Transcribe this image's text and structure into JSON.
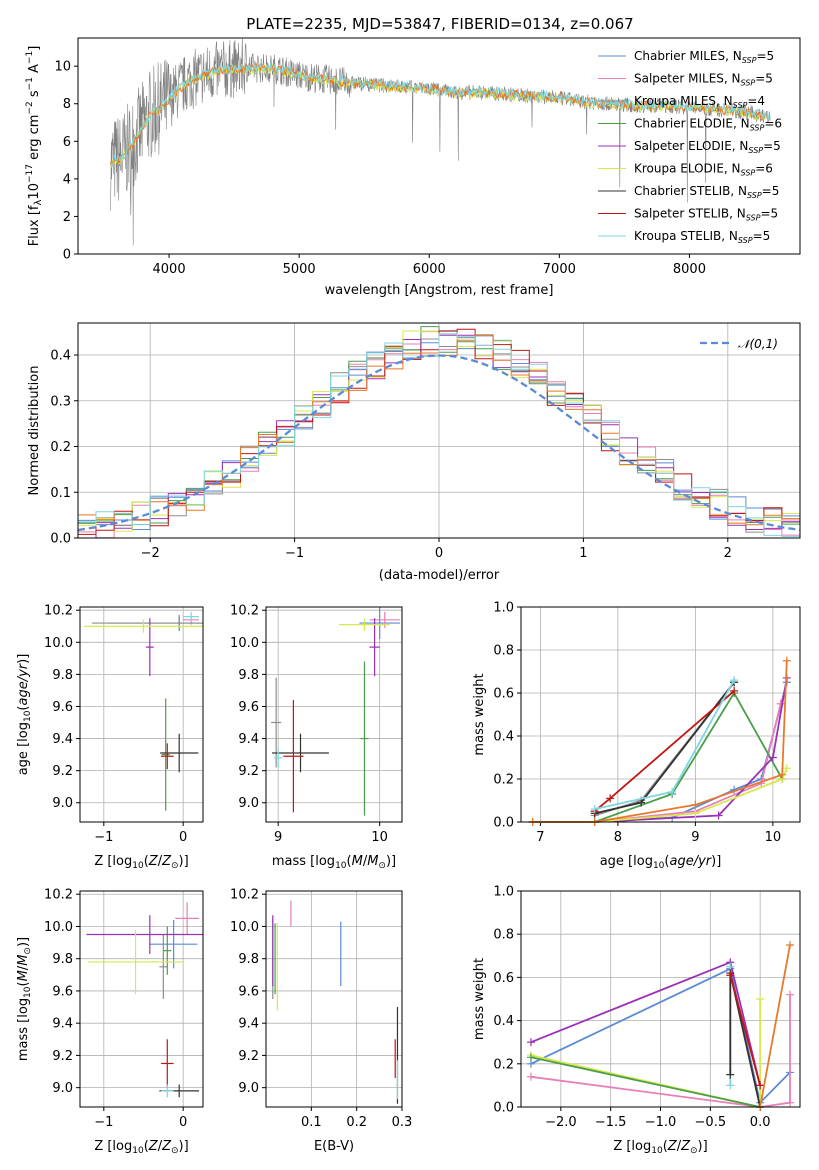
{
  "figure": {
    "title": "PLATE=2235, MJD=53847, FIBERID=0134, z=0.067"
  },
  "colors": {
    "Chabrier MILES": "#5b8bd6",
    "Salpeter MILES": "#e87fb7",
    "Kroupa MILES": "#8e8e8e",
    "Chabrier ELODIE": "#4a9e4a",
    "Salpeter ELODIE": "#9b30b8",
    "Kroupa ELODIE": "#d6e84c",
    "Chabrier STELIB": "#333333",
    "Salpeter STELIB": "#c41414",
    "Kroupa STELIB": "#7fd6e0",
    "observed": "#808080",
    "model_orange": "#e8782a",
    "normal": "#5b8bd6"
  },
  "chart_data": [
    {
      "id": "spectrum",
      "type": "line",
      "title": "PLATE=2235, MJD=53847, FIBERID=0134, z=0.067",
      "xlabel": "wavelength [Angstrom, rest frame]",
      "ylabel": "Flux [f_λ10^{-17} erg cm^{-2} s^{-1} A^{-1}]",
      "xlim": [
        3300,
        8850
      ],
      "ylim": [
        0,
        11.5
      ],
      "xticks": [
        4000,
        5000,
        6000,
        7000,
        8000
      ],
      "yticks": [
        0,
        2,
        4,
        6,
        8,
        10
      ],
      "grid": false,
      "legend": "right",
      "legend_entries": [
        {
          "name": "Chabrier MILES",
          "nssp": "5"
        },
        {
          "name": "Salpeter MILES",
          "nssp": "5"
        },
        {
          "name": "Kroupa MILES",
          "nssp": "4"
        },
        {
          "name": "Chabrier ELODIE",
          "nssp": "6"
        },
        {
          "name": "Salpeter ELODIE",
          "nssp": "5"
        },
        {
          "name": "Kroupa ELODIE",
          "nssp": "6"
        },
        {
          "name": "Chabrier STELIB",
          "nssp": "5"
        },
        {
          "name": "Salpeter STELIB",
          "nssp": "5"
        },
        {
          "name": "Kroupa STELIB",
          "nssp": "5"
        }
      ],
      "continuum": {
        "x": [
          3550,
          3650,
          3750,
          3850,
          3950,
          4050,
          4150,
          4250,
          4400,
          4600,
          4800,
          5000,
          5200,
          5400,
          5600,
          5800,
          6000,
          6200,
          6400,
          6600,
          6800,
          7000,
          7200,
          7400,
          7600,
          7800,
          8000,
          8200,
          8400,
          8600
        ],
        "y": [
          4.8,
          5.2,
          6.2,
          7.4,
          7.9,
          8.6,
          9.2,
          9.5,
          9.8,
          9.9,
          9.9,
          9.5,
          9.3,
          9.1,
          9.0,
          8.9,
          8.8,
          8.6,
          8.6,
          8.5,
          8.4,
          8.3,
          8.1,
          8.0,
          7.9,
          7.9,
          7.8,
          7.7,
          7.6,
          7.3
        ]
      }
    },
    {
      "id": "residuals",
      "type": "line",
      "xlabel": "(data-model)/error",
      "ylabel": "Normed distribution",
      "xlim": [
        -2.5,
        2.5
      ],
      "ylim": [
        0,
        0.47
      ],
      "xticks": [
        -2,
        -1,
        0,
        1,
        2
      ],
      "yticks": [
        0.0,
        0.1,
        0.2,
        0.3,
        0.4
      ],
      "grid": true,
      "legend": "top-right",
      "legend_entries": [
        {
          "name": "𝒩(0,1)"
        }
      ],
      "normal": {
        "mu": 0,
        "sigma": 1
      }
    },
    {
      "id": "age_vs_Z",
      "type": "scatter",
      "xlabel": "Z [log10(Z/Z⊙)]",
      "ylabel": "age [log10(age/yr)]",
      "xlim": [
        -1.3,
        0.25
      ],
      "ylim": [
        8.88,
        10.22
      ],
      "xticks": [
        -1,
        0
      ],
      "yticks": [
        9.0,
        9.2,
        9.4,
        9.6,
        9.8,
        10.0,
        10.2
      ],
      "grid": true,
      "points": [
        {
          "series": "Chabrier MILES",
          "x": -0.05,
          "y": 10.12,
          "xerr": 0.9,
          "yerr": 0.05
        },
        {
          "series": "Salpeter MILES",
          "x": 0.1,
          "y": 10.14,
          "xerr": 0.1,
          "yerr": 0.03
        },
        {
          "series": "Kroupa MILES",
          "x": -0.05,
          "y": 10.12,
          "xerr": 1.1,
          "yerr": 0.04
        },
        {
          "series": "Chabrier ELODIE",
          "x": -0.22,
          "y": 9.3,
          "xerr": 0.05,
          "yerr": 0.35
        },
        {
          "series": "Salpeter ELODIE",
          "x": -0.42,
          "y": 9.97,
          "xerr": 0.05,
          "yerr": 0.18
        },
        {
          "series": "Kroupa ELODIE",
          "x": -0.5,
          "y": 10.1,
          "xerr": 0.75,
          "yerr": 0.04
        },
        {
          "series": "Chabrier STELIB",
          "x": -0.05,
          "y": 9.31,
          "xerr": 0.24,
          "yerr": 0.12
        },
        {
          "series": "Salpeter STELIB",
          "x": -0.2,
          "y": 9.29,
          "xerr": 0.08,
          "yerr": 0.08
        },
        {
          "series": "Kroupa STELIB",
          "x": 0.1,
          "y": 10.16,
          "xerr": 0.1,
          "yerr": 0.03
        }
      ]
    },
    {
      "id": "age_vs_mass",
      "type": "scatter",
      "xlabel": "mass [log10(M/M⊙)]",
      "ylabel": "",
      "xlim": [
        8.88,
        10.22
      ],
      "ylim": [
        8.88,
        10.22
      ],
      "xticks": [
        9,
        10
      ],
      "yticks": [
        9.0,
        9.2,
        9.4,
        9.6,
        9.8,
        10.0,
        10.2
      ],
      "grid": true,
      "points": [
        {
          "series": "Chabrier MILES",
          "x": 10.0,
          "y": 10.12,
          "xerr": 0.2,
          "yerr": 0.1
        },
        {
          "series": "Salpeter MILES",
          "x": 10.05,
          "y": 10.14,
          "xerr": 0.15,
          "yerr": 0.05
        },
        {
          "series": "Kroupa MILES",
          "x": 8.98,
          "y": 9.5,
          "xerr": 0.05,
          "yerr": 0.28
        },
        {
          "series": "Chabrier ELODIE",
          "x": 9.85,
          "y": 9.4,
          "xerr": 0.04,
          "yerr": 0.48
        },
        {
          "series": "Salpeter ELODIE",
          "x": 9.95,
          "y": 9.97,
          "xerr": 0.05,
          "yerr": 0.18
        },
        {
          "series": "Kroupa ELODIE",
          "x": 9.85,
          "y": 10.11,
          "xerr": 0.25,
          "yerr": 0.04
        },
        {
          "series": "Chabrier STELIB",
          "x": 9.22,
          "y": 9.31,
          "xerr": 0.28,
          "yerr": 0.12
        },
        {
          "series": "Salpeter STELIB",
          "x": 9.15,
          "y": 9.29,
          "xerr": 0.1,
          "yerr": 0.35
        },
        {
          "series": "Kroupa STELIB",
          "x": 9.0,
          "y": 9.28,
          "xerr": 0.04,
          "yerr": 0.06
        }
      ]
    },
    {
      "id": "mw_vs_age",
      "type": "line",
      "xlabel": "age [log10(age/yr)]",
      "ylabel": "mass weight",
      "xlim": [
        6.75,
        10.35
      ],
      "ylim": [
        0,
        1.0
      ],
      "xticks": [
        7,
        8,
        9,
        10
      ],
      "yticks": [
        0.0,
        0.2,
        0.4,
        0.6,
        0.8,
        1.0
      ],
      "grid": true,
      "series": [
        {
          "name": "Chabrier MILES",
          "x": [
            6.9,
            7.7,
            8.7,
            9.5,
            9.85,
            10.18
          ],
          "y": [
            0.0,
            0.0,
            0.02,
            0.15,
            0.2,
            0.65
          ]
        },
        {
          "name": "Salpeter MILES",
          "x": [
            6.9,
            7.7,
            9.0,
            9.85,
            10.1
          ],
          "y": [
            0.0,
            0.0,
            0.05,
            0.18,
            0.55
          ]
        },
        {
          "name": "Kroupa MILES",
          "x": [
            7.7,
            8.3,
            9.5
          ],
          "y": [
            0.03,
            0.1,
            0.65
          ]
        },
        {
          "name": "Chabrier ELODIE",
          "x": [
            7.7,
            8.7,
            9.5,
            10.12
          ],
          "y": [
            0.0,
            0.13,
            0.6,
            0.2
          ]
        },
        {
          "name": "Salpeter ELODIE",
          "x": [
            6.9,
            7.7,
            9.3,
            10.0,
            10.18
          ],
          "y": [
            0.0,
            0.0,
            0.03,
            0.3,
            0.67
          ]
        },
        {
          "name": "Kroupa ELODIE",
          "x": [
            6.9,
            7.7,
            9.0,
            10.12,
            10.18
          ],
          "y": [
            0.0,
            0.0,
            0.04,
            0.2,
            0.25
          ]
        },
        {
          "name": "Chabrier STELIB",
          "x": [
            7.7,
            8.3,
            9.5
          ],
          "y": [
            0.04,
            0.09,
            0.65
          ]
        },
        {
          "name": "Salpeter STELIB",
          "x": [
            7.7,
            7.9,
            9.5
          ],
          "y": [
            0.05,
            0.11,
            0.61
          ]
        },
        {
          "name": "Kroupa STELIB",
          "x": [
            7.7,
            8.7,
            9.5
          ],
          "y": [
            0.06,
            0.14,
            0.66
          ]
        },
        {
          "name": "orange",
          "x": [
            6.9,
            7.7,
            9.0,
            10.12,
            10.18
          ],
          "y": [
            0.0,
            0.0,
            0.08,
            0.22,
            0.75
          ]
        }
      ]
    },
    {
      "id": "mass_vs_Z",
      "type": "scatter",
      "xlabel": "Z [log10(Z/Z⊙)]",
      "ylabel": "mass [log10(M/M⊙)]",
      "xlim": [
        -1.3,
        0.25
      ],
      "ylim": [
        8.88,
        10.22
      ],
      "xticks": [
        -1,
        0
      ],
      "yticks": [
        9.0,
        9.2,
        9.4,
        9.6,
        9.8,
        10.0,
        10.2
      ],
      "grid": true,
      "points": [
        {
          "series": "Chabrier MILES",
          "x": -0.12,
          "y": 9.89,
          "xerr": 0.3,
          "yerr": 0.15
        },
        {
          "series": "Salpeter MILES",
          "x": 0.05,
          "y": 10.05,
          "xerr": 0.15,
          "yerr": 0.1
        },
        {
          "series": "Kroupa MILES",
          "x": -0.25,
          "y": 9.75,
          "xerr": 0.05,
          "yerr": 0.2
        },
        {
          "series": "Chabrier ELODIE",
          "x": -0.2,
          "y": 9.85,
          "xerr": 0.05,
          "yerr": 0.15
        },
        {
          "series": "Salpeter ELODIE",
          "x": -0.42,
          "y": 9.95,
          "xerr": 0.8,
          "yerr": 0.12
        },
        {
          "series": "Kroupa ELODIE",
          "x": -0.6,
          "y": 9.78,
          "xerr": 0.6,
          "yerr": 0.2
        },
        {
          "series": "Chabrier STELIB",
          "x": -0.05,
          "y": 8.98,
          "xerr": 0.25,
          "yerr": 0.04
        },
        {
          "series": "Salpeter STELIB",
          "x": -0.2,
          "y": 9.15,
          "xerr": 0.08,
          "yerr": 0.15
        },
        {
          "series": "Kroupa STELIB",
          "x": -0.2,
          "y": 8.98,
          "xerr": 0.08,
          "yerr": 0.04
        }
      ]
    },
    {
      "id": "mass_vs_ebv",
      "type": "scatter",
      "xlabel": "E(B-V)",
      "ylabel": "",
      "xlim": [
        0.0,
        0.3
      ],
      "ylim": [
        8.88,
        10.22
      ],
      "xticks": [
        0.1,
        0.2,
        0.3
      ],
      "yticks": [
        9.0,
        9.2,
        9.4,
        9.6,
        9.8,
        10.0,
        10.2
      ],
      "grid": true,
      "points": [
        {
          "series": "Chabrier MILES",
          "x": 0.165,
          "y": 9.83,
          "xerr": 0.0,
          "yerr": 0.2
        },
        {
          "series": "Salpeter MILES",
          "x": 0.055,
          "y": 10.08,
          "xerr": 0.0,
          "yerr": 0.08
        },
        {
          "series": "Kroupa MILES",
          "x": 0.015,
          "y": 9.8,
          "xerr": 0.0,
          "yerr": 0.25
        },
        {
          "series": "Chabrier ELODIE",
          "x": 0.02,
          "y": 9.8,
          "xerr": 0.0,
          "yerr": 0.22
        },
        {
          "series": "Salpeter ELODIE",
          "x": 0.015,
          "y": 9.85,
          "xerr": 0.0,
          "yerr": 0.22
        },
        {
          "series": "Kroupa ELODIE",
          "x": 0.025,
          "y": 9.75,
          "xerr": 0.0,
          "yerr": 0.27
        },
        {
          "series": "Chabrier STELIB",
          "x": 0.29,
          "y": 9.2,
          "xerr": 0.0,
          "yerr": 0.3
        },
        {
          "series": "Salpeter STELIB",
          "x": 0.285,
          "y": 9.18,
          "xerr": 0.0,
          "yerr": 0.12
        },
        {
          "series": "Kroupa STELIB",
          "x": 0.29,
          "y": 9.05,
          "xerr": 0.0,
          "yerr": 0.12
        }
      ]
    },
    {
      "id": "mw_vs_Z",
      "type": "line",
      "xlabel": "Z [log10(Z/Z⊙)]",
      "ylabel": "mass weight",
      "xlim": [
        -2.4,
        0.4
      ],
      "ylim": [
        0,
        1.0
      ],
      "xticks": [
        -2.0,
        -1.5,
        -1.0,
        -0.5,
        0.0
      ],
      "yticks": [
        0.0,
        0.2,
        0.4,
        0.6,
        0.8,
        1.0
      ],
      "grid": true,
      "series": [
        {
          "name": "Chabrier MILES",
          "x": [
            -2.3,
            -0.3,
            0.0,
            0.3
          ],
          "y": [
            0.2,
            0.64,
            0.02,
            0.16
          ]
        },
        {
          "name": "Salpeter MILES",
          "x": [
            -2.3,
            0.0,
            0.3,
            0.3
          ],
          "y": [
            0.14,
            0.0,
            0.02,
            0.52
          ]
        },
        {
          "name": "Salpeter ELODIE",
          "x": [
            -2.3,
            -0.3,
            0.0
          ],
          "y": [
            0.3,
            0.67,
            0.1
          ]
        },
        {
          "name": "Kroupa ELODIE",
          "x": [
            -2.3,
            0.0,
            0.0
          ],
          "y": [
            0.24,
            0.0,
            0.5
          ]
        },
        {
          "name": "Chabrier ELODIE",
          "x": [
            -2.3,
            0.0
          ],
          "y": [
            0.23,
            0.0
          ]
        },
        {
          "name": "Kroupa STELIB",
          "x": [
            -0.3,
            -0.3
          ],
          "y": [
            0.1,
            0.65
          ]
        },
        {
          "name": "Chabrier STELIB",
          "x": [
            -0.3,
            -0.3,
            0.0
          ],
          "y": [
            0.15,
            0.62,
            0.0
          ]
        },
        {
          "name": "Salpeter STELIB",
          "x": [
            -0.3,
            0.0
          ],
          "y": [
            0.61,
            0.1
          ]
        },
        {
          "name": "orange",
          "x": [
            0.0,
            0.3
          ],
          "y": [
            0.0,
            0.75
          ]
        }
      ]
    }
  ]
}
